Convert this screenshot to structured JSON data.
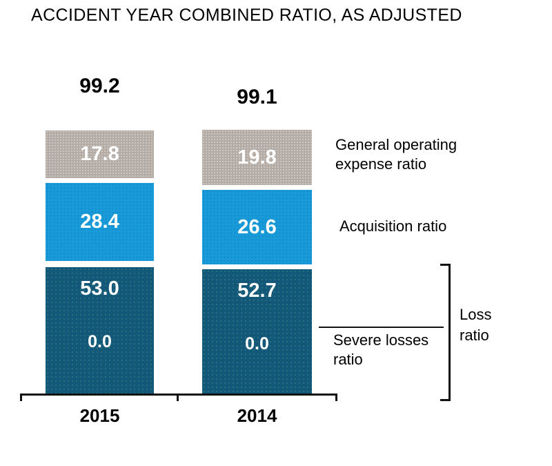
{
  "title": "ACCIDENT YEAR COMBINED RATIO, AS ADJUSTED",
  "chart_data": {
    "type": "bar",
    "stacked": true,
    "title": "ACCIDENT YEAR COMBINED RATIO, AS ADJUSTED",
    "categories": [
      "2015",
      "2014"
    ],
    "totals": [
      "99.2",
      "99.1"
    ],
    "series": [
      {
        "name": "General operating expense ratio",
        "color": "#b3aba4",
        "values": [
          "17.8",
          "19.8"
        ]
      },
      {
        "name": "Acquisition ratio",
        "color": "#189bd8",
        "values": [
          "28.4",
          "26.6"
        ]
      },
      {
        "name": "Loss ratio excluding severe losses",
        "color": "#135878",
        "values": [
          "53.0",
          "52.7"
        ]
      },
      {
        "name": "Severe losses ratio",
        "color": "#135878",
        "values": [
          "0.0",
          "0.0"
        ]
      }
    ],
    "value_axis_visible": false,
    "grid": false,
    "legend_position": "right"
  },
  "annotations": {
    "general_operating_line1": "General operating",
    "general_operating_line2": "expense ratio",
    "acquisition": "Acquisition ratio",
    "severe_losses_line1": "Severe losses",
    "severe_losses_line2": "ratio",
    "loss_line1": "Loss",
    "loss_line2": "ratio"
  },
  "colors": {
    "general_operating_segment": "#b3aba4",
    "acquisition_segment": "#189bd8",
    "loss_segment": "#135878",
    "label_text": "#000000",
    "value_text": "#ffffff",
    "axis": "#111111"
  }
}
